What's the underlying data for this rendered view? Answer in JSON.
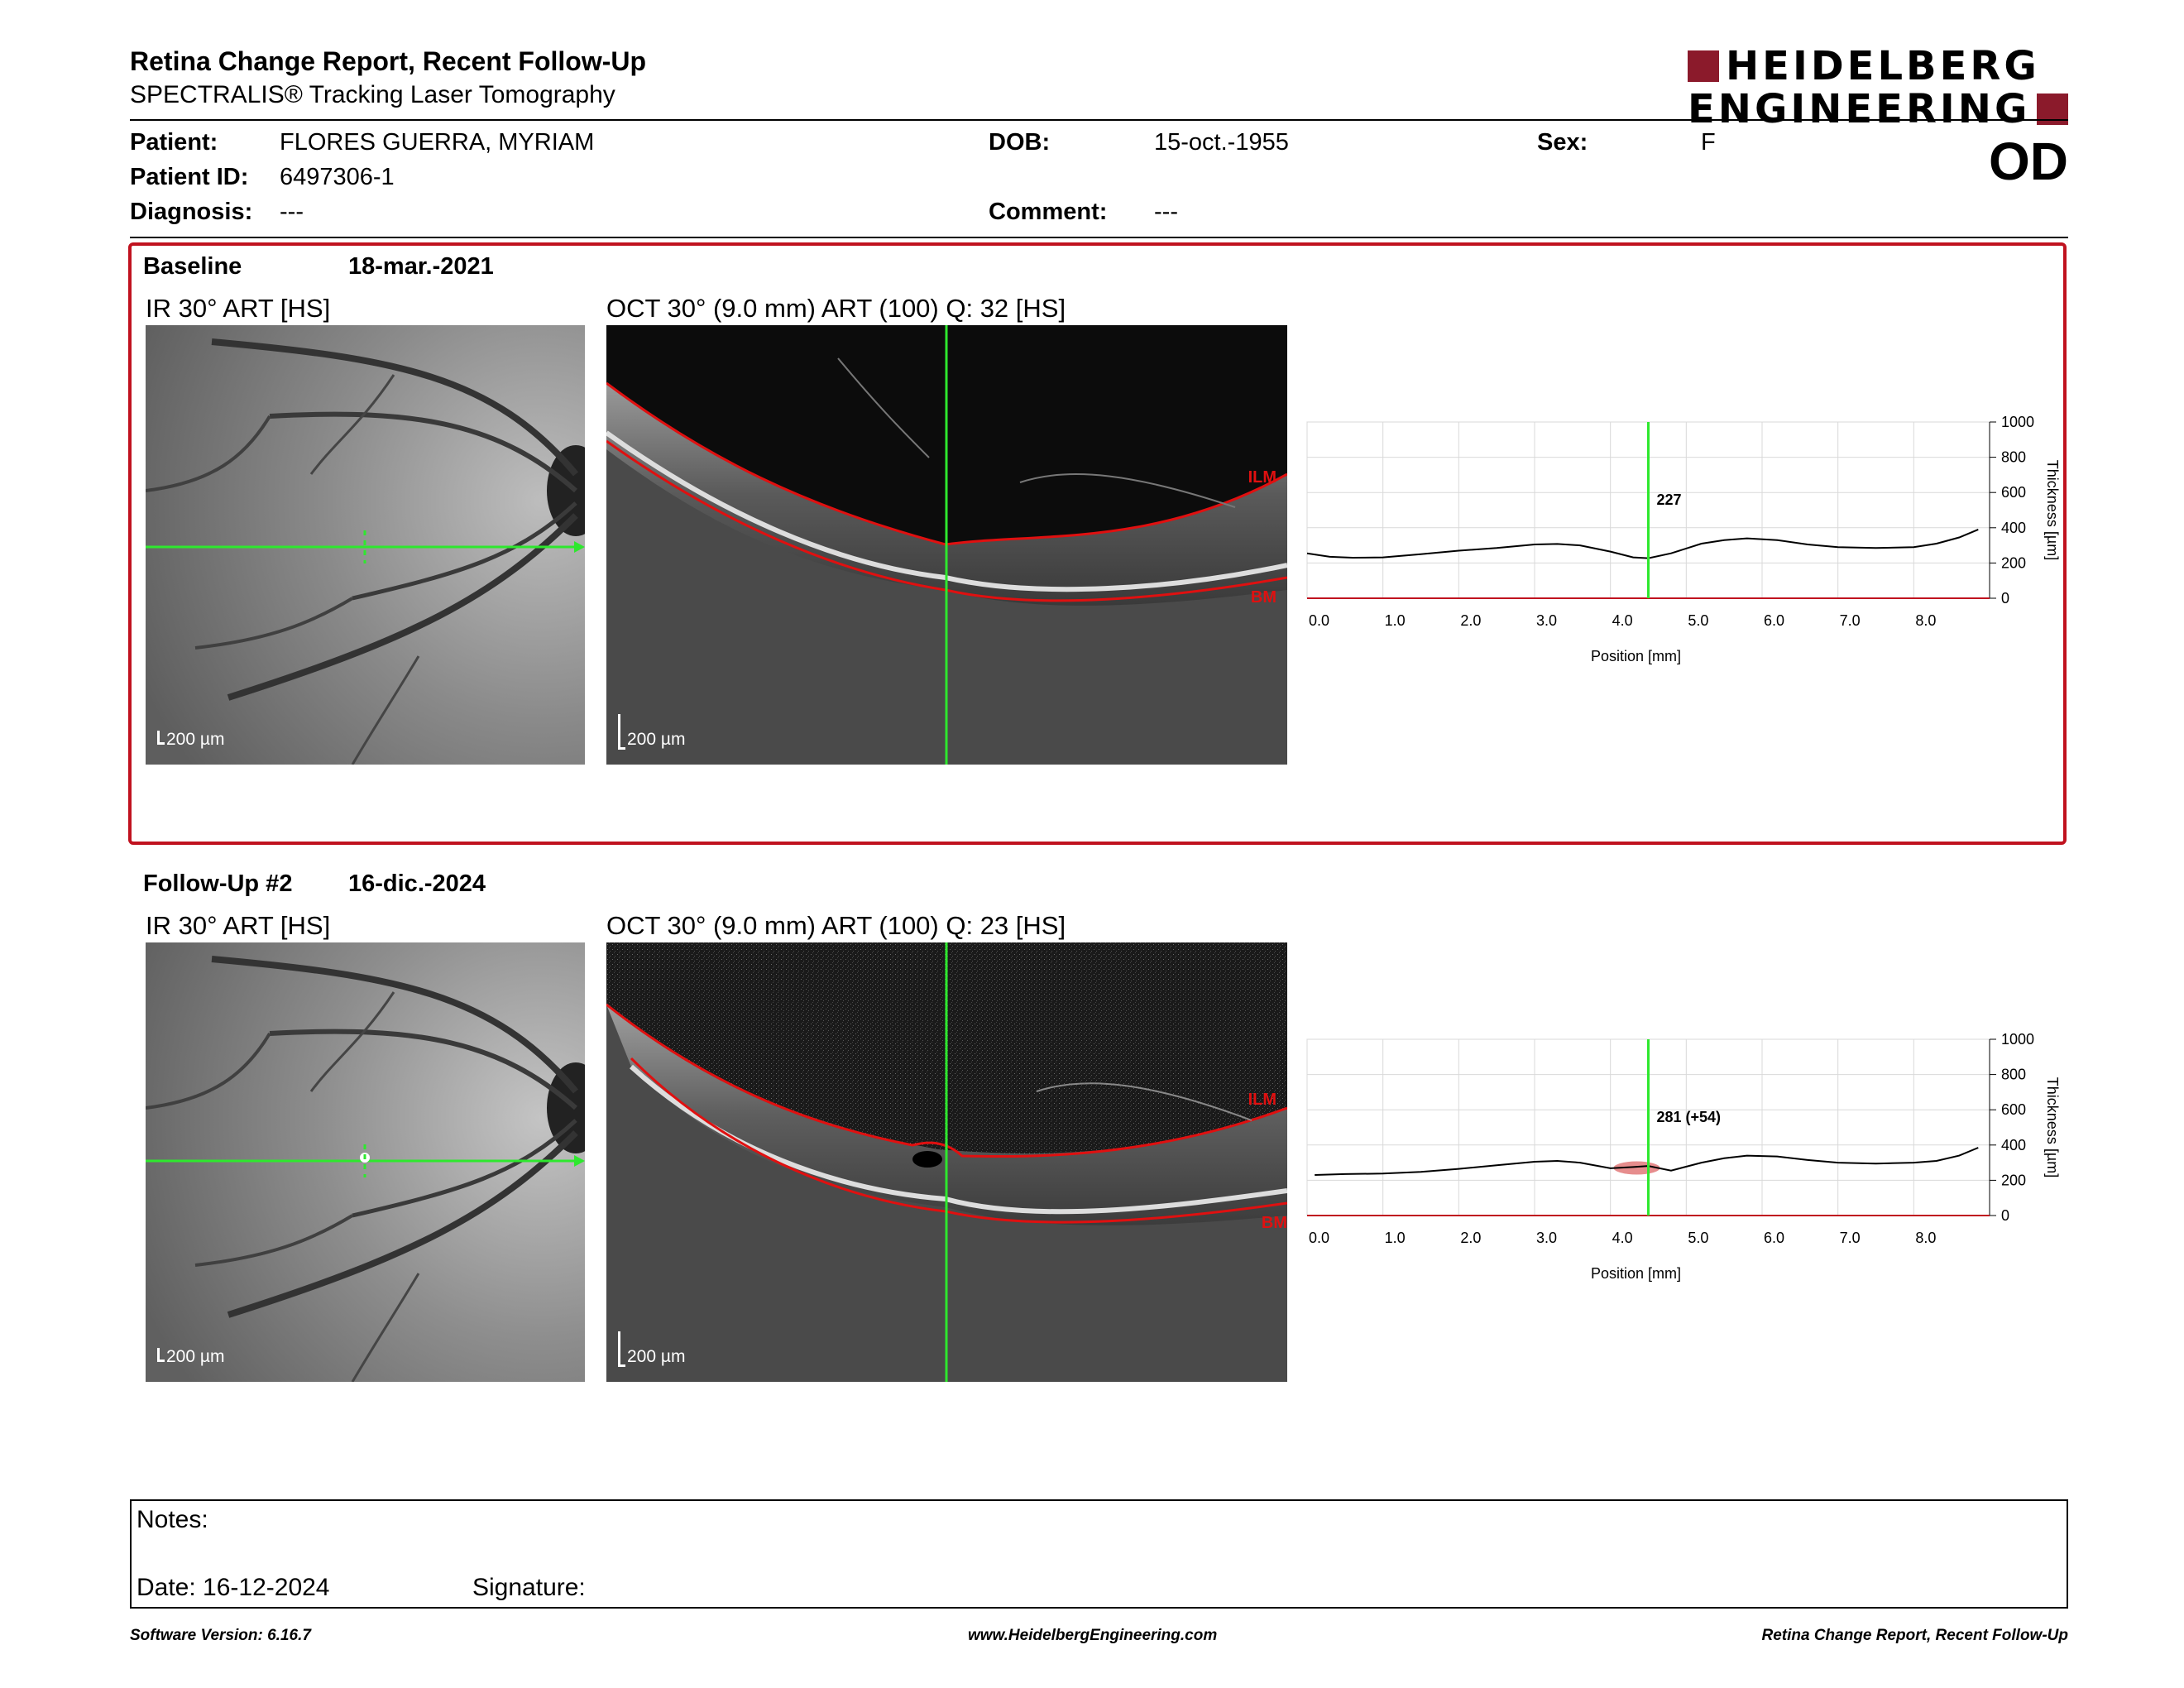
{
  "header": {
    "title": "Retina Change Report, Recent Follow-Up",
    "subtitle": "SPECTRALIS® Tracking Laser Tomography",
    "logo_line1": "HEIDELBERG",
    "logo_line2": "ENGINEERING",
    "eye": "OD"
  },
  "patient": {
    "name_label": "Patient:",
    "name": "FLORES GUERRA, MYRIAM",
    "id_label": "Patient ID:",
    "id": "6497306-1",
    "diagnosis_label": "Diagnosis:",
    "diagnosis": "---",
    "dob_label": "DOB:",
    "dob": "15-oct.-1955",
    "comment_label": "Comment:",
    "comment": "---",
    "sex_label": "Sex:",
    "sex": "F"
  },
  "exams": [
    {
      "label": "Baseline",
      "date": "18-mar.-2021",
      "ir_caption": "IR 30° ART [HS]",
      "oct_caption": "OCT 30° (9.0 mm) ART (100) Q: 32 [HS]",
      "scale_label": "200 µm",
      "ilm_label": "ILM",
      "bm_label": "BM",
      "thickness_value_label": "227"
    },
    {
      "label": "Follow-Up #2",
      "date": "16-dic.-2024",
      "ir_caption": "IR 30° ART [HS]",
      "oct_caption": "OCT 30° (9.0 mm) ART (100) Q: 23 [HS]",
      "scale_label": "200 µm",
      "ilm_label": "ILM",
      "bm_label": "BM",
      "thickness_value_label": "281 (+54)"
    }
  ],
  "chart_data": [
    {
      "type": "line",
      "xlabel": "Position [mm]",
      "ylabel": "Thickness [µm]",
      "xlim": [
        0,
        9.0
      ],
      "ylim": [
        0,
        1000
      ],
      "x_ticks": [
        "0.0",
        "1.0",
        "2.0",
        "3.0",
        "4.0",
        "5.0",
        "6.0",
        "7.0",
        "8.0"
      ],
      "y_ticks": [
        "0",
        "200",
        "400",
        "600",
        "800",
        "1000"
      ],
      "cursor_x": 4.5,
      "grid": true,
      "series": [
        {
          "x": [
            0.0,
            0.3,
            0.6,
            1.0,
            1.5,
            2.0,
            2.5,
            3.0,
            3.3,
            3.6,
            4.0,
            4.3,
            4.5,
            4.8,
            5.2,
            5.5,
            5.8,
            6.2,
            6.6,
            7.0,
            7.5,
            8.0,
            8.3,
            8.6,
            8.85
          ],
          "y": [
            255,
            235,
            230,
            232,
            250,
            270,
            285,
            305,
            308,
            300,
            265,
            232,
            227,
            255,
            310,
            330,
            340,
            330,
            305,
            290,
            285,
            290,
            310,
            345,
            390
          ]
        }
      ]
    },
    {
      "type": "line",
      "xlabel": "Position [mm]",
      "ylabel": "Thickness [µm]",
      "xlim": [
        0,
        9.0
      ],
      "ylim": [
        0,
        1000
      ],
      "x_ticks": [
        "0.0",
        "1.0",
        "2.0",
        "3.0",
        "4.0",
        "5.0",
        "6.0",
        "7.0",
        "8.0"
      ],
      "y_ticks": [
        "0",
        "200",
        "400",
        "600",
        "800",
        "1000"
      ],
      "cursor_x": 4.5,
      "grid": true,
      "series": [
        {
          "x": [
            0.1,
            0.5,
            1.0,
            1.5,
            2.0,
            2.5,
            3.0,
            3.3,
            3.6,
            4.0,
            4.3,
            4.5,
            4.8,
            5.2,
            5.5,
            5.8,
            6.2,
            6.6,
            7.0,
            7.5,
            8.0,
            8.3,
            8.6,
            8.85
          ],
          "y": [
            230,
            235,
            238,
            248,
            265,
            285,
            305,
            310,
            300,
            268,
            275,
            281,
            255,
            300,
            325,
            340,
            335,
            315,
            300,
            295,
            300,
            310,
            340,
            385
          ]
        }
      ]
    }
  ],
  "notes": {
    "notes_label": "Notes:",
    "date_label": "Date: 16-12-2024",
    "signature_label": "Signature:"
  },
  "footer": {
    "software": "Software Version: 6.16.7",
    "website": "www.HeidelbergEngineering.com",
    "report_name": "Retina Change Report, Recent Follow-Up"
  },
  "colors": {
    "accent_red": "#c0121f",
    "cursor_green": "#2ee82e",
    "segment_red": "#e01010",
    "logo_red": "#8b1a2b"
  }
}
